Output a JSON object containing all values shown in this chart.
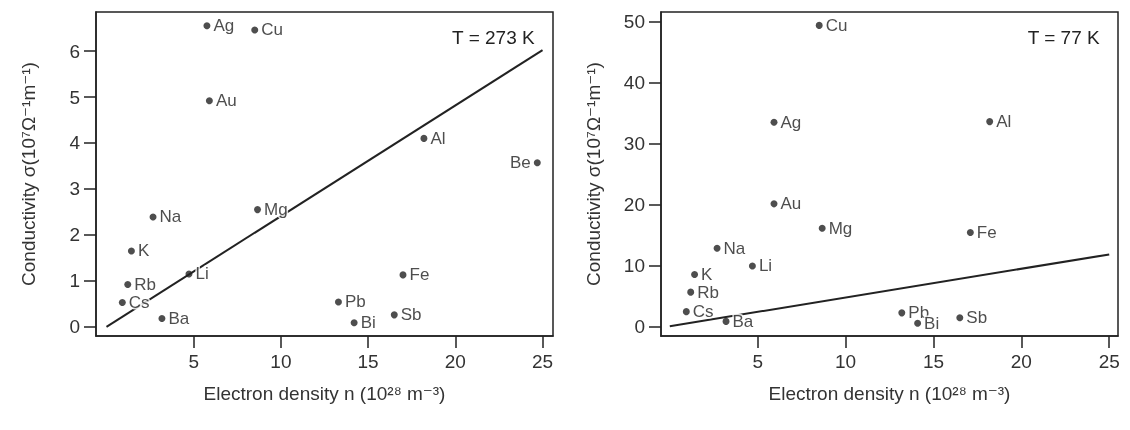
{
  "chart_data": [
    {
      "type": "scatter",
      "xlabel": "Electron density n (10²⁸ m⁻³)",
      "ylabel": "Conductivity σ(10⁷Ω⁻¹m⁻¹)",
      "annotations": [
        "T = 273 K"
      ],
      "xlim": [
        -0.6,
        25.6
      ],
      "xticks": [
        5,
        10,
        15,
        20,
        25
      ],
      "ylim": [
        -0.2,
        6.85
      ],
      "yticks": [
        0,
        1,
        2,
        3,
        4,
        5,
        6
      ],
      "grid": false,
      "series": [
        {
          "marker": "circle",
          "color": "#222222",
          "x": [
            5.76,
            8.5,
            5.9,
            18.2,
            24.7,
            8.66,
            2.67,
            1.43,
            4.73,
            1.22,
            0.91,
            3.18,
            17.0,
            13.3,
            14.2,
            16.5
          ],
          "values": [
            6.55,
            6.46,
            4.92,
            4.1,
            3.57,
            2.55,
            2.39,
            1.65,
            1.15,
            0.92,
            0.53,
            0.18,
            1.13,
            0.54,
            0.09,
            0.26
          ],
          "value_labels": [
            "Ag",
            "Cu",
            "Au",
            "Al",
            "Be",
            "Mg",
            "Na",
            "K",
            "Li",
            "Rb",
            "Cs",
            "Ba",
            "Fe",
            "Pb",
            "Bi",
            "Sb"
          ]
        },
        {
          "type": "line",
          "color": "#222222",
          "line_style": "solid",
          "x": [
            0,
            25
          ],
          "values": [
            0,
            6.02
          ]
        }
      ]
    },
    {
      "type": "scatter",
      "xlabel": "Electron density n (10²⁸ m⁻³)",
      "ylabel": "Conductivity σ(10⁷Ω⁻¹m⁻¹)",
      "annotations": [
        "T = 77 K"
      ],
      "xlim": [
        -0.5,
        25.5
      ],
      "xticks": [
        5,
        10,
        15,
        20,
        25
      ],
      "ylim": [
        -1.6,
        51.6
      ],
      "yticks": [
        0,
        10,
        20,
        30,
        40,
        50
      ],
      "grid": false,
      "series": [
        {
          "marker": "circle",
          "color": "#222222",
          "x": [
            8.5,
            5.93,
            18.2,
            5.93,
            8.67,
            17.1,
            2.69,
            4.7,
            1.41,
            1.19,
            0.94,
            3.2,
            13.2,
            14.1,
            16.5
          ],
          "values": [
            49.4,
            33.5,
            33.6,
            20.1,
            16.1,
            15.4,
            12.8,
            9.9,
            8.5,
            5.6,
            2.4,
            0.8,
            2.2,
            0.5,
            1.4
          ],
          "value_labels": [
            "Cu",
            "Ag",
            "Al",
            "Au",
            "Mg",
            "Fe",
            "Na",
            "Li",
            "K",
            "Rb",
            "Cs",
            "Ba",
            "Pb",
            "Bi",
            "Sb"
          ]
        },
        {
          "type": "line",
          "color": "#222222",
          "line_style": "solid",
          "x": [
            0,
            25
          ],
          "values": [
            0,
            11.8
          ]
        }
      ]
    }
  ]
}
